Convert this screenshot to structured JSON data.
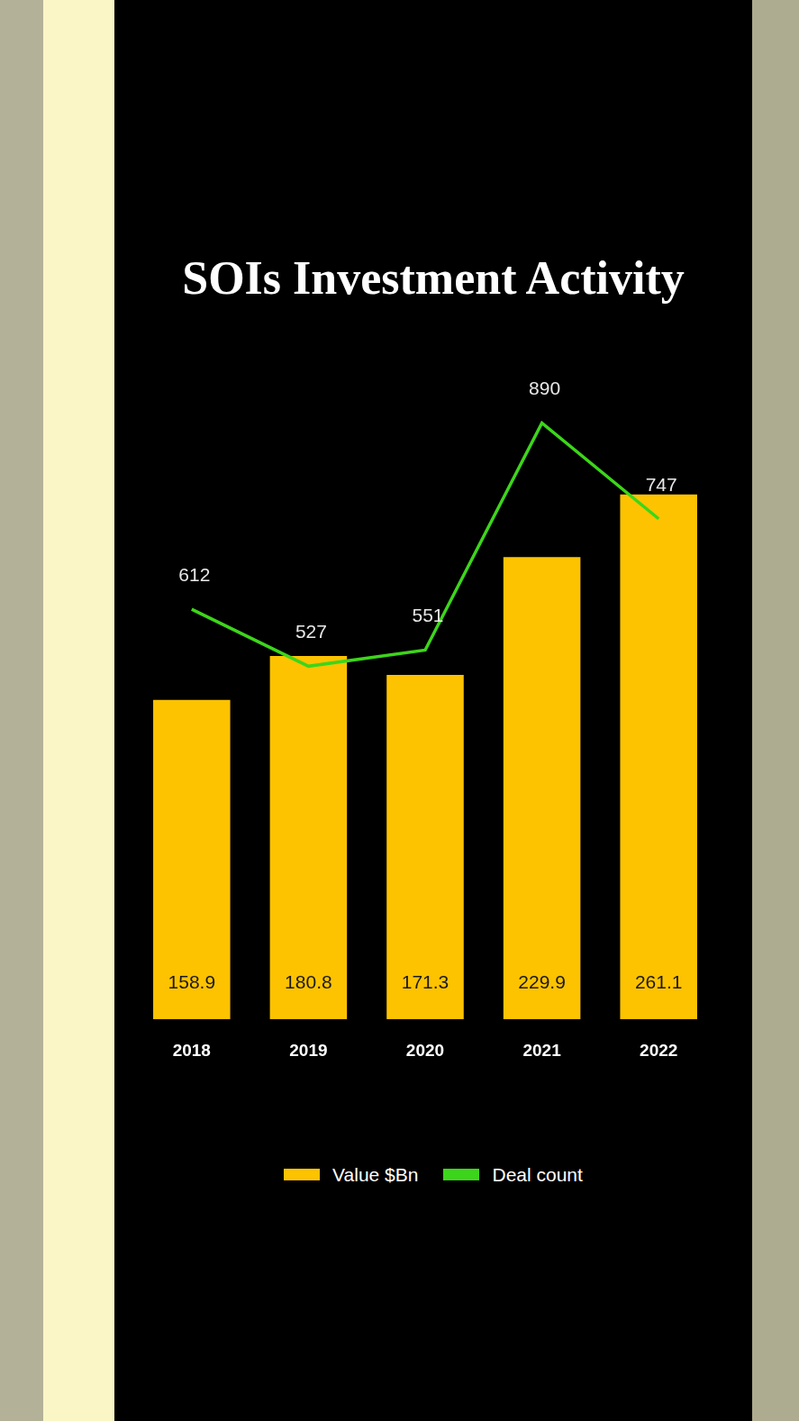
{
  "chart_data": {
    "type": "bar",
    "title": "SOIs Investment Activity",
    "categories": [
      "2018",
      "2019",
      "2020",
      "2021",
      "2022"
    ],
    "series": [
      {
        "name": "Value $Bn",
        "type": "bar",
        "color": "#fdc300",
        "values": [
          158.9,
          180.8,
          171.3,
          229.9,
          261.1
        ]
      },
      {
        "name": "Deal count",
        "type": "line",
        "color": "#3dd51b",
        "axis": "y2",
        "values": [
          612,
          527,
          551,
          890,
          747
        ]
      }
    ],
    "ylim": [
      0,
      300
    ],
    "y2lim": [
      0,
      900
    ],
    "grid": false,
    "data_labels": true,
    "tick_labels": "x",
    "legend": "bottom"
  }
}
